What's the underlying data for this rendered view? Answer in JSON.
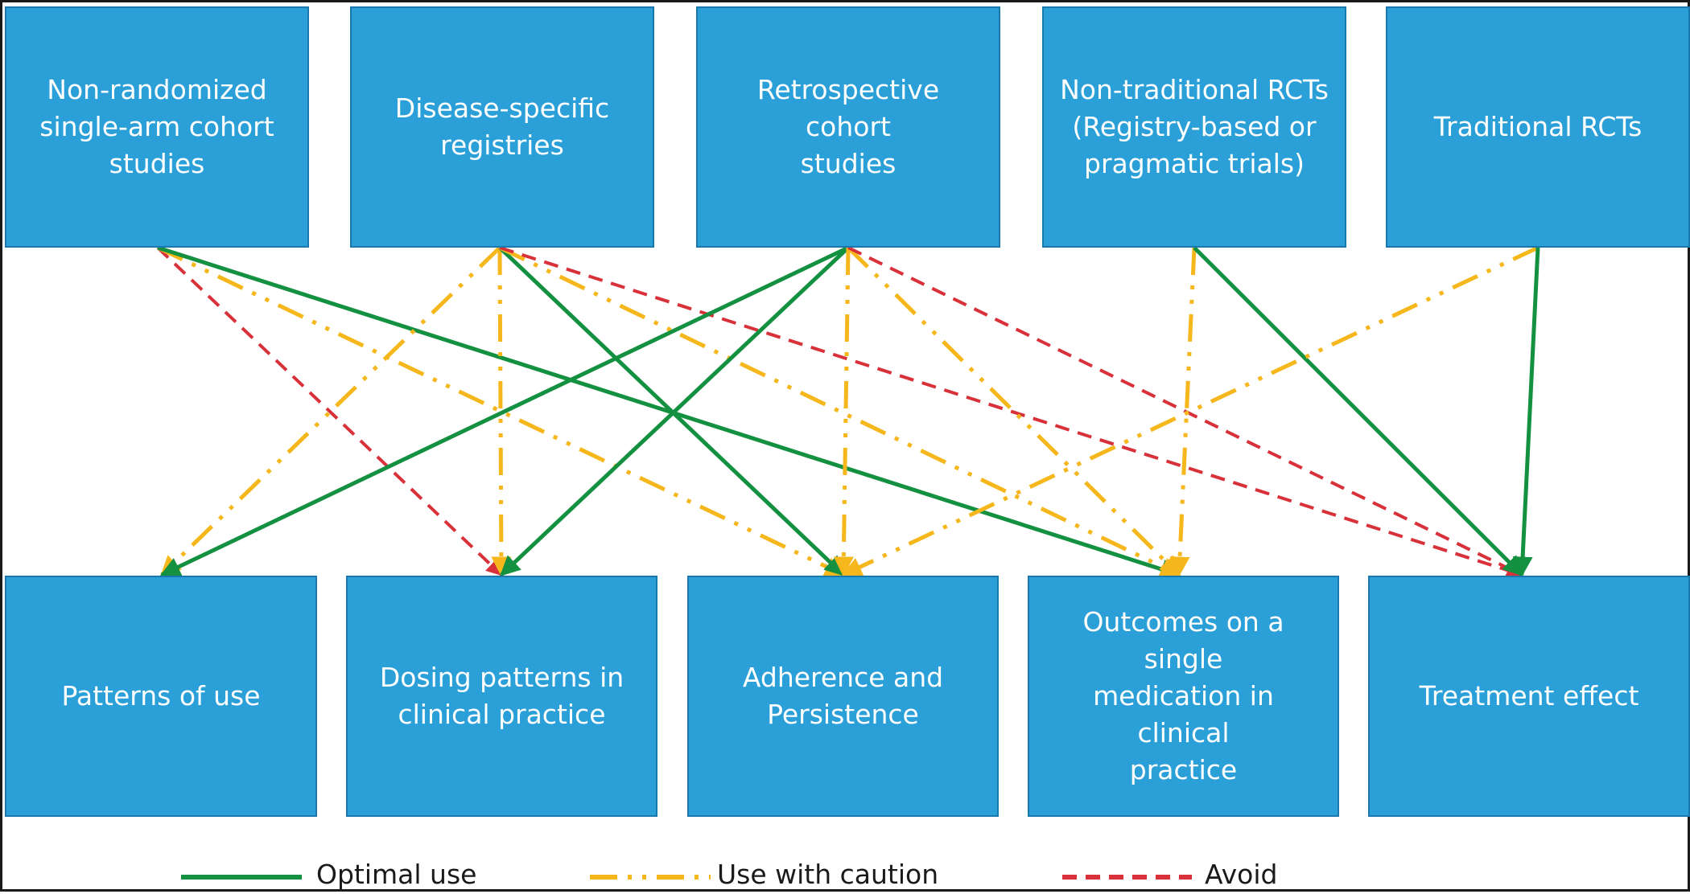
{
  "sources": [
    {
      "id": "s1",
      "label": "Non-randomized\nsingle-arm cohort\nstudies"
    },
    {
      "id": "s2",
      "label": "Disease-specific\nregistries"
    },
    {
      "id": "s3",
      "label": "Retrospective cohort\nstudies"
    },
    {
      "id": "s4",
      "label": "Non-traditional RCTs\n(Registry-based or\npragmatic trials)"
    },
    {
      "id": "s5",
      "label": "Traditional RCTs"
    }
  ],
  "targets": [
    {
      "id": "t1",
      "label": "Patterns of use"
    },
    {
      "id": "t2",
      "label": "Dosing patterns in\nclinical practice"
    },
    {
      "id": "t3",
      "label": "Adherence and\nPersistence"
    },
    {
      "id": "t4",
      "label": "Outcomes on a single\nmedication in clinical\npractice"
    },
    {
      "id": "t5",
      "label": "Treatment effect"
    }
  ],
  "edges": [
    {
      "from": "s1",
      "to": "t2",
      "type": "avoid"
    },
    {
      "from": "s1",
      "to": "t3",
      "type": "caution"
    },
    {
      "from": "s1",
      "to": "t4",
      "type": "optimal"
    },
    {
      "from": "s2",
      "to": "t1",
      "type": "caution"
    },
    {
      "from": "s2",
      "to": "t2",
      "type": "caution"
    },
    {
      "from": "s2",
      "to": "t3",
      "type": "optimal"
    },
    {
      "from": "s2",
      "to": "t4",
      "type": "caution"
    },
    {
      "from": "s2",
      "to": "t5",
      "type": "avoid"
    },
    {
      "from": "s3",
      "to": "t1",
      "type": "optimal"
    },
    {
      "from": "s3",
      "to": "t2",
      "type": "optimal"
    },
    {
      "from": "s3",
      "to": "t3",
      "type": "caution"
    },
    {
      "from": "s3",
      "to": "t4",
      "type": "caution"
    },
    {
      "from": "s3",
      "to": "t5",
      "type": "avoid"
    },
    {
      "from": "s4",
      "to": "t4",
      "type": "caution"
    },
    {
      "from": "s4",
      "to": "t5",
      "type": "optimal"
    },
    {
      "from": "s5",
      "to": "t3",
      "type": "caution"
    },
    {
      "from": "s5",
      "to": "t5",
      "type": "optimal"
    }
  ],
  "styles": {
    "optimal": {
      "color": "#139040"
    },
    "caution": {
      "color": "#f5b71c"
    },
    "avoid": {
      "color": "#d8313a"
    }
  },
  "legend": [
    {
      "type": "optimal",
      "label": "Optimal use"
    },
    {
      "type": "caution",
      "label": "Use with caution"
    },
    {
      "type": "avoid",
      "label": "Avoid"
    }
  ]
}
